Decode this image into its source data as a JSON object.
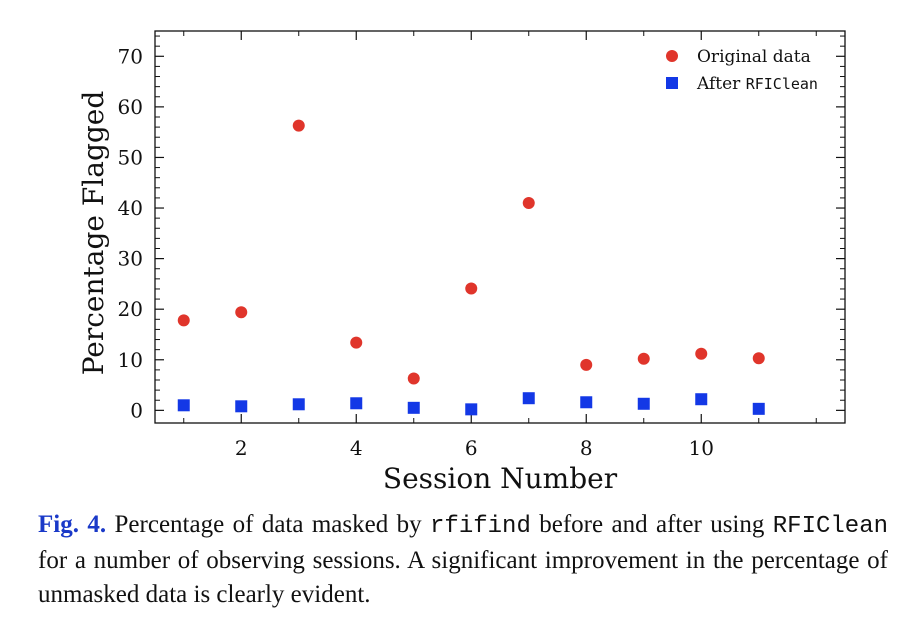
{
  "chart_data": {
    "type": "scatter",
    "xlabel": "Session Number",
    "ylabel": "Percentage Flagged",
    "xlim": [
      0.5,
      12.5
    ],
    "ylim": [
      -2.5,
      75
    ],
    "x_ticks": [
      2,
      4,
      6,
      8,
      10
    ],
    "y_ticks": [
      0,
      10,
      20,
      30,
      40,
      50,
      60,
      70
    ],
    "legend_position": "top-right",
    "series": [
      {
        "name": "Original data",
        "marker": "circle",
        "color": "#e0352b",
        "x": [
          1,
          2,
          3,
          4,
          5,
          6,
          7,
          8,
          9,
          10,
          11
        ],
        "y": [
          17.8,
          19.4,
          56.3,
          13.4,
          6.3,
          24.1,
          41.0,
          9.0,
          10.2,
          11.2,
          10.3
        ]
      },
      {
        "name": "After ",
        "name_code": "RFIClean",
        "marker": "square",
        "color": "#1338e6",
        "x": [
          1,
          2,
          3,
          4,
          5,
          6,
          7,
          8,
          9,
          10,
          11
        ],
        "y": [
          1.0,
          0.8,
          1.2,
          1.4,
          0.5,
          0.2,
          2.4,
          1.6,
          1.3,
          2.2,
          0.3
        ]
      }
    ]
  },
  "caption": {
    "label": "Fig. 4.",
    "text1": " Percentage of data masked by ",
    "code1": "rfifind",
    "text2": " before and after using ",
    "code2": "RFIClean",
    "text3": " for a number of observing sessions. A significant improvement in the percentage of unmasked data is clearly evident."
  }
}
